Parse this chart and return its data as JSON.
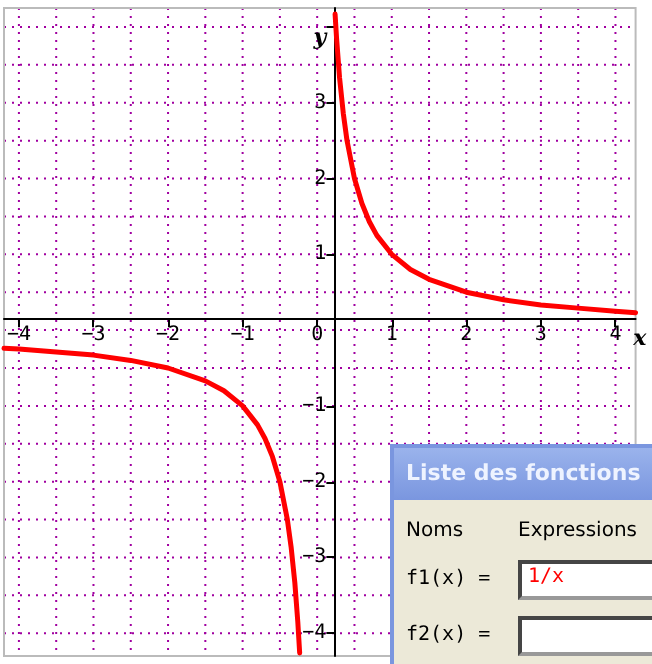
{
  "chart_data": {
    "type": "line",
    "xlabel": "x",
    "ylabel": "y",
    "x": [
      -4.2,
      -4,
      -3.5,
      -3,
      -2.5,
      -2,
      -1.5,
      -1.25,
      -1,
      -0.8,
      -0.7,
      -0.6,
      -0.5,
      -0.4,
      -0.35,
      -0.3,
      -0.26,
      -0.235,
      0,
      0.24,
      0.26,
      0.3,
      0.35,
      0.4,
      0.5,
      0.6,
      0.7,
      0.8,
      1,
      1.25,
      1.5,
      2,
      2.5,
      3,
      3.5,
      4,
      4.27
    ],
    "series": [
      {
        "color": "#ff0000",
        "values": [
          -0.24,
          -0.25,
          -0.29,
          -0.33,
          -0.4,
          -0.5,
          -0.67,
          -0.8,
          -1,
          -1.25,
          -1.43,
          -1.67,
          -2,
          -2.5,
          -2.86,
          -3.33,
          -3.85,
          -4.26,
          null,
          4.17,
          3.85,
          3.33,
          2.86,
          2.5,
          2,
          1.67,
          1.43,
          1.25,
          1,
          0.8,
          0.67,
          0.5,
          0.4,
          0.33,
          0.29,
          0.25,
          0.23
        ]
      }
    ],
    "xlim": [
      -4.2,
      4.27
    ],
    "ylim": [
      -4.3,
      4.25
    ],
    "xticks": [
      -4,
      -3,
      -2,
      -1,
      0,
      1,
      2,
      3,
      4
    ],
    "yticks": [
      -4,
      -3,
      -2,
      -1,
      1,
      2,
      3,
      {
        "value": 4,
        "label": null
      }
    ],
    "grid": true,
    "marker": "none",
    "line_style": "solid",
    "annotations": [
      "Liste des fonctions",
      "Noms",
      "Expressions",
      "f1(x) =",
      "1/x",
      "f2(x) ="
    ]
  }
}
